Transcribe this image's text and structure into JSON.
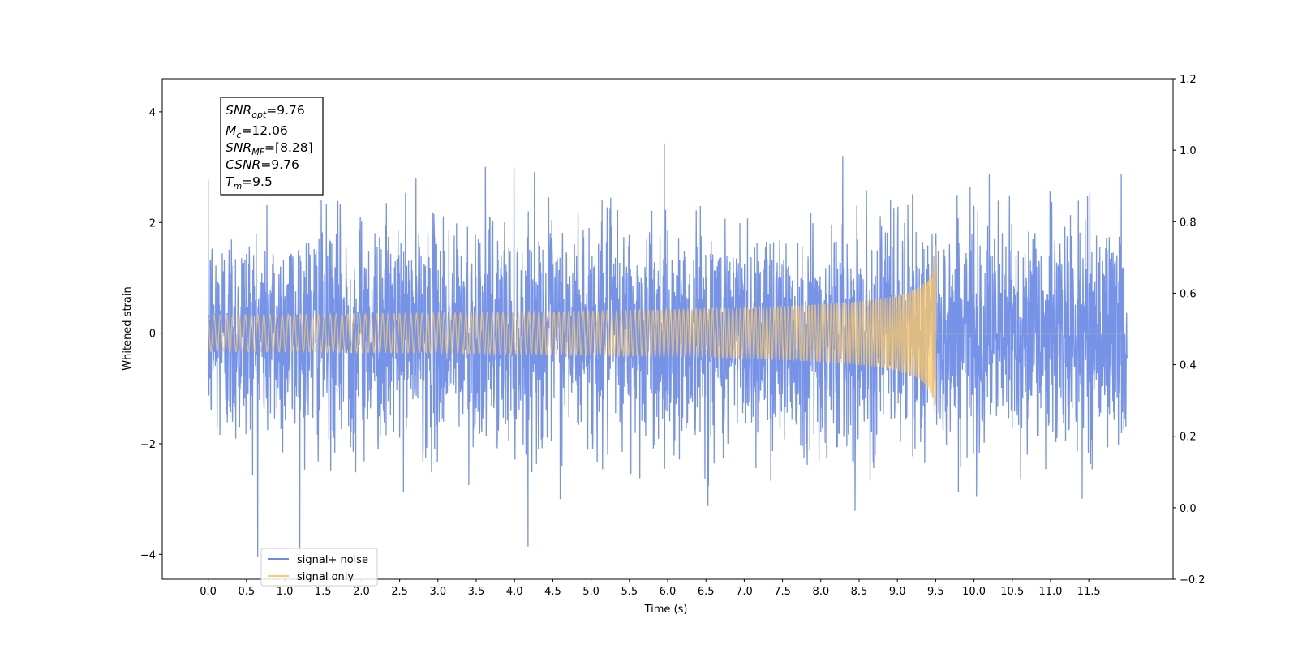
{
  "chart_data": {
    "type": "line",
    "xlabel": "Time (s)",
    "ylabel": "Whitened strain",
    "x_ticks": [
      "0.0",
      "0.5",
      "1.0",
      "1.5",
      "2.0",
      "2.5",
      "3.0",
      "3.5",
      "4.0",
      "4.5",
      "5.0",
      "5.5",
      "6.0",
      "6.5",
      "7.0",
      "7.5",
      "8.0",
      "8.5",
      "9.0",
      "9.5",
      "10.0",
      "10.5",
      "11.0",
      "11.5"
    ],
    "x_range": [
      0,
      12
    ],
    "xlim": [
      -0.6,
      12.6
    ],
    "ylim": [
      -4.45,
      4.6
    ],
    "y_ticks": [
      -4,
      -2,
      0,
      2,
      4
    ],
    "y_right_lim": [
      -0.2,
      1.2
    ],
    "y_right_ticks": [
      "−0.2",
      "0.0",
      "0.2",
      "0.4",
      "0.6",
      "0.8",
      "1.0",
      "1.2"
    ],
    "series": [
      {
        "name": "signal+ noise",
        "color": "#6a8ae6",
        "noise_std": 1.0,
        "min": -4.05,
        "max": 4.21
      },
      {
        "name": "signal only",
        "color": "#ffc966",
        "signal_peak": 1.75,
        "merger_time": 9.5
      }
    ],
    "stats": [
      {
        "sym": "SNR",
        "sub": "opt",
        "value": "=9.76"
      },
      {
        "sym": "M",
        "sub": "c",
        "value": "=12.06"
      },
      {
        "sym": "SNR",
        "sub": "MF",
        "value": "=[8.28]"
      },
      {
        "sym": "CSNR",
        "sub": "",
        "value": "=9.76"
      },
      {
        "sym": "T",
        "sub": "m",
        "value": "=9.5"
      }
    ],
    "legend": {
      "location": "lower-left",
      "entries": [
        "signal+ noise",
        "signal only"
      ]
    }
  }
}
